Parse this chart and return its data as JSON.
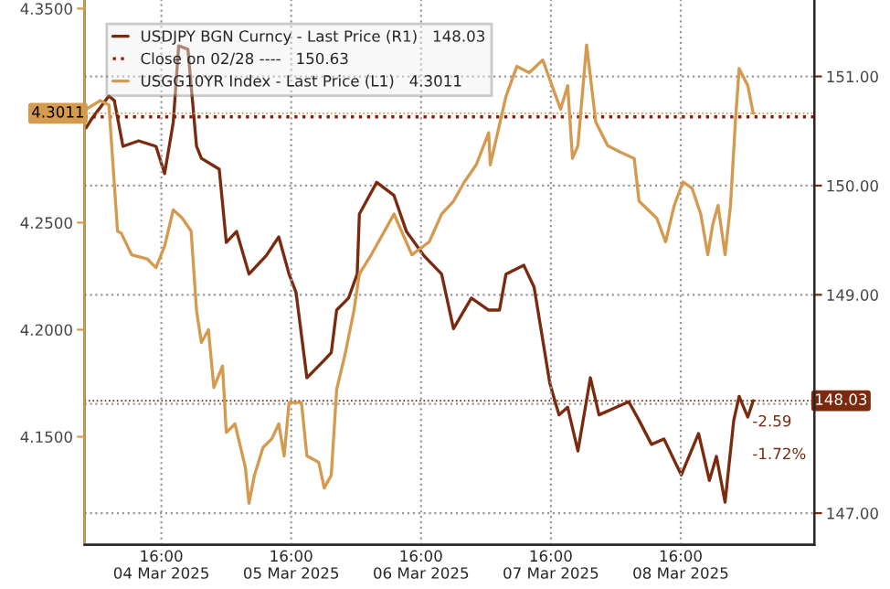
{
  "chart_data": {
    "type": "line",
    "xlim": [
      "2025-03-04T01:48",
      "2025-03-09T16:42"
    ],
    "xticks": [
      {
        "value": "2025-03-04T16:00",
        "label": "16:00\n04 Mar 2025"
      },
      {
        "value": "2025-03-05T16:00",
        "label": "16:00\n05 Mar 2025"
      },
      {
        "value": "2025-03-06T16:00",
        "label": "16:00\n06 Mar 2025"
      },
      {
        "value": "2025-03-07T16:00",
        "label": "16:00\n07 Mar 2025"
      },
      {
        "value": "2025-03-08T16:00",
        "label": "16:00\n08 Mar 2025"
      }
    ],
    "ylim": [
      4.0995,
      4.354
    ],
    "yticks": [
      {
        "value": 4.15,
        "label": "4.1500"
      },
      {
        "value": 4.2,
        "label": "4.2000"
      },
      {
        "value": 4.25,
        "label": "4.2500"
      },
      {
        "value": 4.35,
        "label": "4.3500"
      }
    ],
    "y2lim": [
      146.71,
      151.7
    ],
    "y2ticks": [
      {
        "value": 147,
        "label": "147.00"
      },
      {
        "value": 148,
        "label": null
      },
      {
        "value": 149,
        "label": "149.00"
      },
      {
        "value": 150,
        "label": "150.00"
      },
      {
        "value": 151,
        "label": "151.00"
      }
    ],
    "grid": true,
    "legend": "top left",
    "series": [
      {
        "name": "USDJPY BGN Curncy - Last Price (R1)   148.03",
        "color": "#7a2a0e",
        "axis": "y2",
        "line_style": "solid",
        "x": [
          "2025-03-04T02:06",
          "2025-03-04T03:06",
          "2025-03-04T06:18",
          "2025-03-04T07:18",
          "2025-03-04T08:54",
          "2025-03-04T11:48",
          "2025-03-04T15:00",
          "2025-03-04T16:36",
          "2025-03-04T18:12",
          "2025-03-04T19:12",
          "2025-03-04T20:54",
          "2025-03-04T22:30",
          "2025-03-04T23:24",
          "2025-03-05T02:42",
          "2025-03-05T04:00",
          "2025-03-05T05:54",
          "2025-03-05T08:12",
          "2025-03-05T11:24",
          "2025-03-05T13:42",
          "2025-03-05T15:36",
          "2025-03-05T16:54",
          "2025-03-05T18:54",
          "2025-03-05T22:06",
          "2025-03-05T23:24",
          "2025-03-06T00:24",
          "2025-03-06T02:36",
          "2025-03-06T04:12",
          "2025-03-06T04:36",
          "2025-03-06T07:48",
          "2025-03-06T11:00",
          "2025-03-06T13:18",
          "2025-03-06T16:30",
          "2025-03-06T19:48",
          "2025-03-06T22:00",
          "2025-03-07T01:18",
          "2025-03-07T04:30",
          "2025-03-07T06:30",
          "2025-03-07T07:42",
          "2025-03-07T11:00",
          "2025-03-07T12:54",
          "2025-03-07T15:48",
          "2025-03-07T17:30",
          "2025-03-07T19:06",
          "2025-03-07T21:00",
          "2025-03-07T23:18",
          "2025-03-08T00:54",
          "2025-03-08T04:06",
          "2025-03-08T06:24",
          "2025-03-08T08:18",
          "2025-03-08T10:36",
          "2025-03-08T12:54",
          "2025-03-08T16:06",
          "2025-03-08T19:18",
          "2025-03-08T21:18",
          "2025-03-08T22:36",
          "2025-03-09T00:12",
          "2025-03-09T01:48",
          "2025-03-09T02:48",
          "2025-03-09T04:24",
          "2025-03-09T05:24"
        ],
        "values": [
          150.53,
          150.61,
          150.82,
          150.78,
          150.36,
          150.41,
          150.36,
          150.11,
          150.58,
          151.28,
          151.25,
          150.36,
          150.25,
          150.15,
          149.48,
          149.58,
          149.19,
          149.36,
          149.53,
          149.19,
          149.02,
          148.24,
          148.4,
          148.47,
          148.86,
          148.97,
          149.19,
          149.74,
          150.03,
          149.91,
          149.58,
          149.36,
          149.19,
          148.69,
          148.97,
          148.86,
          148.86,
          149.19,
          149.27,
          149.07,
          148.19,
          147.9,
          147.97,
          147.57,
          148.24,
          147.9,
          147.97,
          148.02,
          147.85,
          147.63,
          147.68,
          147.35,
          147.73,
          147.3,
          147.52,
          147.1,
          147.85,
          148.07,
          147.88,
          148.03
        ]
      },
      {
        "name": "Close on 02/28 ----   150.63",
        "color": "#8b1a0a",
        "axis": "y2",
        "line_style": "dotted",
        "x": [
          "2025-03-04T01:48",
          "2025-03-09T16:42"
        ],
        "values": [
          150.63,
          150.63
        ]
      },
      {
        "name": "USGG10YR Index - Last Price (L1)   4.3011",
        "color": "#d49a50",
        "line_style": "solid",
        "x": [
          "2025-03-04T02:06",
          "2025-03-04T04:42",
          "2025-03-04T06:18",
          "2025-03-04T07:54",
          "2025-03-04T08:36",
          "2025-03-04T10:30",
          "2025-03-04T13:24",
          "2025-03-04T15:00",
          "2025-03-04T16:36",
          "2025-03-04T18:12",
          "2025-03-04T19:54",
          "2025-03-04T21:30",
          "2025-03-04T22:30",
          "2025-03-04T23:24",
          "2025-03-05T00:42",
          "2025-03-05T01:42",
          "2025-03-05T03:18",
          "2025-03-05T04:00",
          "2025-03-05T05:36",
          "2025-03-05T07:30",
          "2025-03-05T08:12",
          "2025-03-05T09:12",
          "2025-03-05T10:48",
          "2025-03-05T12:24",
          "2025-03-05T13:42",
          "2025-03-05T14:42",
          "2025-03-05T15:36",
          "2025-03-05T17:54",
          "2025-03-05T18:54",
          "2025-03-05T21:06",
          "2025-03-05T22:06",
          "2025-03-05T23:24",
          "2025-03-06T00:24",
          "2025-03-06T02:00",
          "2025-03-06T03:36",
          "2025-03-06T04:36",
          "2025-03-06T06:48",
          "2025-03-06T11:00",
          "2025-03-06T14:18",
          "2025-03-06T17:30",
          "2025-03-06T19:48",
          "2025-03-06T22:00",
          "2025-03-07T00:00",
          "2025-03-07T02:12",
          "2025-03-07T04:30",
          "2025-03-07T04:48",
          "2025-03-07T07:42",
          "2025-03-07T09:42",
          "2025-03-07T12:00",
          "2025-03-07T14:30",
          "2025-03-07T16:12",
          "2025-03-07T17:48",
          "2025-03-07T19:06",
          "2025-03-07T20:00",
          "2025-03-07T21:00",
          "2025-03-07T22:36",
          "2025-03-08T00:18",
          "2025-03-08T02:30",
          "2025-03-08T04:48",
          "2025-03-08T07:24",
          "2025-03-08T08:18",
          "2025-03-08T11:36",
          "2025-03-08T13:12",
          "2025-03-08T14:48",
          "2025-03-08T16:24",
          "2025-03-08T18:06",
          "2025-03-08T19:42",
          "2025-03-08T21:00",
          "2025-03-08T21:54",
          "2025-03-08T22:54",
          "2025-03-09T00:12",
          "2025-03-09T01:12",
          "2025-03-09T02:06",
          "2025-03-09T02:48",
          "2025-03-09T04:24",
          "2025-03-09T05:24"
        ],
        "values": [
          4.303,
          4.307,
          4.305,
          4.246,
          4.245,
          4.235,
          4.233,
          4.229,
          4.239,
          4.256,
          4.252,
          4.246,
          4.209,
          4.194,
          4.2,
          4.173,
          4.183,
          4.152,
          4.156,
          4.136,
          4.119,
          4.132,
          4.145,
          4.149,
          4.156,
          4.141,
          4.166,
          4.166,
          4.141,
          4.138,
          4.126,
          4.132,
          4.172,
          4.189,
          4.209,
          4.226,
          4.235,
          4.254,
          4.235,
          4.241,
          4.254,
          4.26,
          4.269,
          4.277,
          4.292,
          4.277,
          4.309,
          4.323,
          4.32,
          4.326,
          4.314,
          4.303,
          4.314,
          4.28,
          4.286,
          4.333,
          4.297,
          4.286,
          4.283,
          4.28,
          4.26,
          4.252,
          4.241,
          4.258,
          4.269,
          4.266,
          4.254,
          4.235,
          4.249,
          4.258,
          4.235,
          4.258,
          4.297,
          4.322,
          4.314,
          4.3011
        ]
      }
    ],
    "ref_lines": [
      {
        "axis": "y",
        "value": 4.3011,
        "label": "4.3011",
        "color": "#d49a50"
      },
      {
        "axis": "y2",
        "value": 148.03,
        "label": "148.03",
        "color": "#7a2a0e"
      }
    ],
    "annotations": [
      "-2.59",
      "-1.72%"
    ]
  }
}
